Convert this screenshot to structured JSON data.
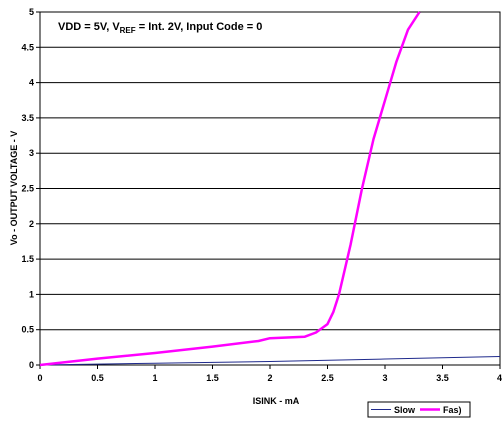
{
  "chart_data": {
    "type": "line",
    "annotation": {
      "vdd": "VDD = 5V, V",
      "ref_sub": "REF",
      "rest": " = Int. 2V, Input Code = 0"
    },
    "xlabel": "ISINK - mA",
    "ylabel": "Vo - OUTPUT VOLTAGE - V",
    "xlim": [
      0,
      4
    ],
    "ylim": [
      0,
      5
    ],
    "x_ticks": [
      "0",
      "0.5",
      "1",
      "1.5",
      "2",
      "2.5",
      "3",
      "3.5",
      "4"
    ],
    "y_ticks": [
      "0",
      "0.5",
      "1",
      "1.5",
      "2",
      "2.5",
      "3",
      "3.5",
      "4",
      "4.5",
      "5"
    ],
    "grid": "horizontal",
    "legend_position": "bottom-right",
    "series": [
      {
        "name": "Slow",
        "color": "#1f2a8c",
        "points": [
          [
            0,
            0.0
          ],
          [
            1,
            0.025
          ],
          [
            2,
            0.05
          ],
          [
            3,
            0.085
          ],
          [
            4,
            0.12
          ]
        ]
      },
      {
        "name": "Fas)",
        "color": "#ff00ff",
        "points": [
          [
            0,
            0.0
          ],
          [
            0.5,
            0.09
          ],
          [
            1,
            0.17
          ],
          [
            1.5,
            0.26
          ],
          [
            1.9,
            0.34
          ],
          [
            2.0,
            0.38
          ],
          [
            2.3,
            0.4
          ],
          [
            2.4,
            0.46
          ],
          [
            2.5,
            0.58
          ],
          [
            2.55,
            0.75
          ],
          [
            2.6,
            1.0
          ],
          [
            2.7,
            1.7
          ],
          [
            2.8,
            2.5
          ],
          [
            2.9,
            3.2
          ],
          [
            3.0,
            3.75
          ],
          [
            3.1,
            4.3
          ],
          [
            3.2,
            4.75
          ],
          [
            3.3,
            5.0
          ]
        ]
      }
    ]
  }
}
